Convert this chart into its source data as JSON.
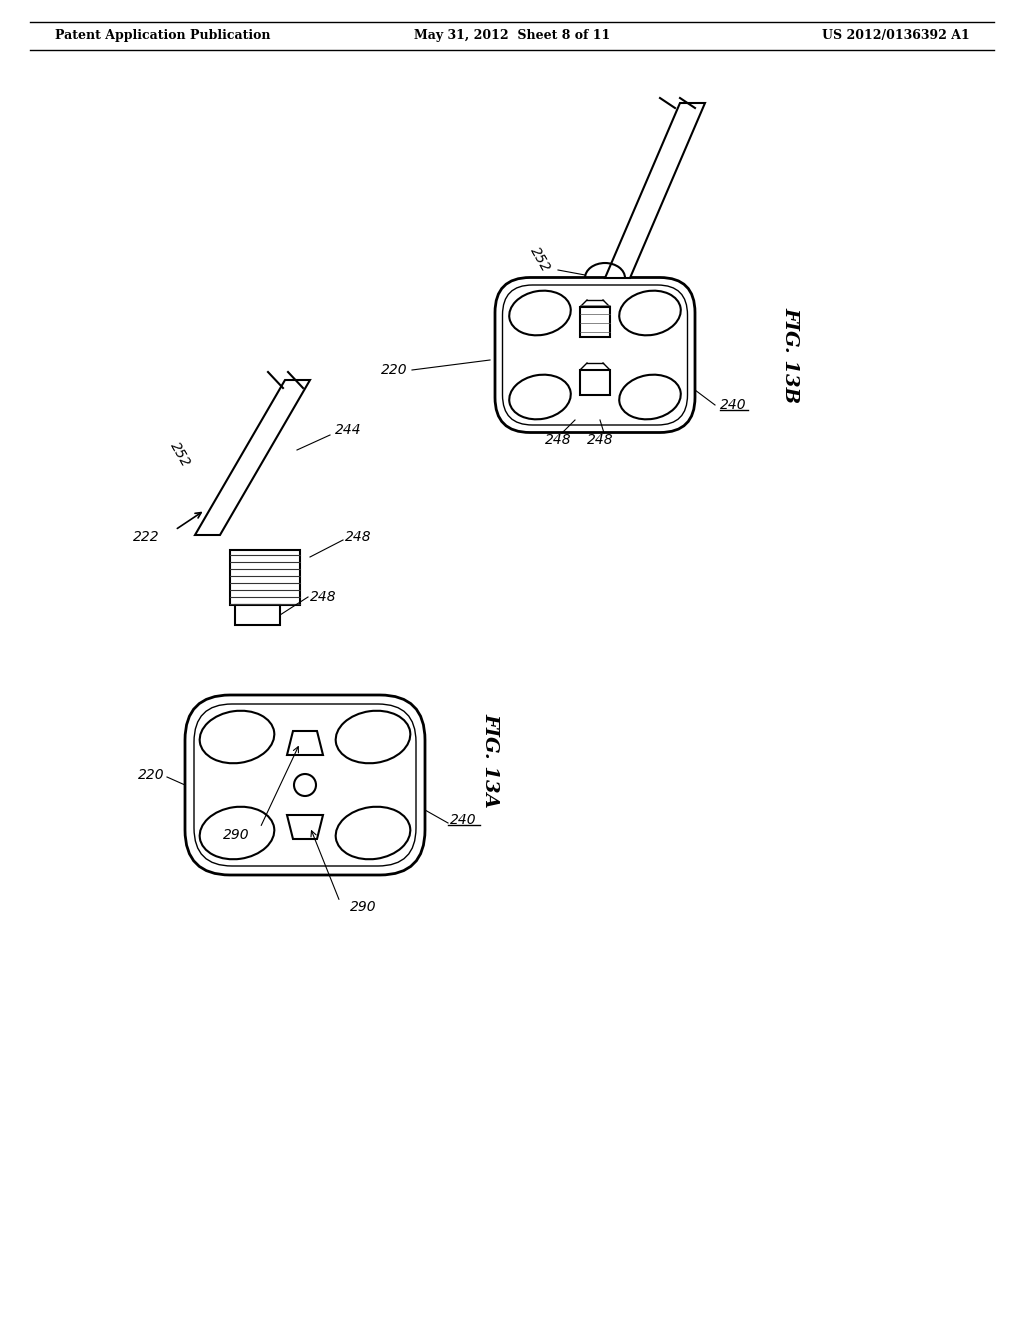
{
  "bg_color": "#ffffff",
  "line_color": "#000000",
  "header_left": "Patent Application Publication",
  "header_mid": "May 31, 2012  Sheet 8 of 11",
  "header_right": "US 2012/0136392 A1",
  "fig_label_13A": "FIG. 13A",
  "fig_label_13B": "FIG. 13B",
  "labels": {
    "220_top": "220",
    "240_top": "240",
    "248_top_left": "248",
    "248_top_right": "248",
    "252_top": "252",
    "220_mid": "222",
    "252_mid": "252",
    "244_mid": "244",
    "248_mid_upper": "248",
    "248_mid_lower": "248",
    "220_bot": "220",
    "240_bot": "240",
    "290_left": "290",
    "290_right": "290"
  }
}
